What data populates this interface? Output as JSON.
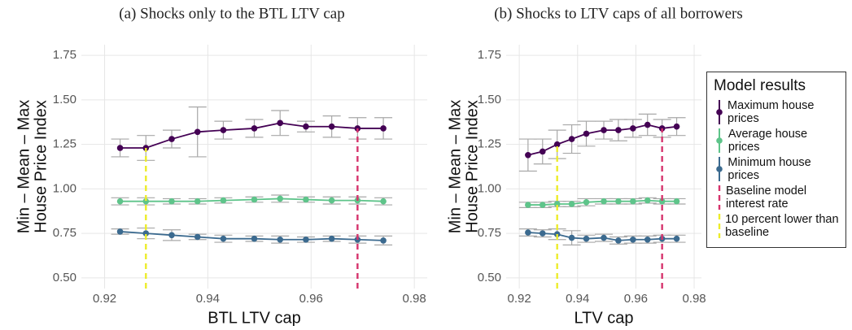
{
  "chart_data": [
    {
      "type": "line",
      "title": "(a) Shocks only to the BTL LTV cap",
      "xlabel": "BTL LTV cap",
      "ylabel": [
        "Min – Mean – Max",
        "House Price Index"
      ],
      "x": [
        0.923,
        0.928,
        0.933,
        0.938,
        0.943,
        0.949,
        0.954,
        0.959,
        0.964,
        0.969,
        0.974
      ],
      "series": [
        {
          "name": "Maximum house prices",
          "color": "#440154",
          "values": [
            1.23,
            1.23,
            1.28,
            1.32,
            1.33,
            1.34,
            1.37,
            1.35,
            1.35,
            1.34,
            1.34
          ],
          "errors": [
            0.05,
            0.07,
            0.05,
            0.14,
            0.05,
            0.05,
            0.07,
            0.03,
            0.06,
            0.06,
            0.06
          ]
        },
        {
          "name": "Average house prices",
          "color": "#5ec48a",
          "values": [
            0.93,
            0.93,
            0.93,
            0.93,
            0.935,
            0.94,
            0.945,
            0.94,
            0.935,
            0.935,
            0.93
          ],
          "errors": [
            0.02,
            0.02,
            0.015,
            0.015,
            0.015,
            0.015,
            0.02,
            0.015,
            0.02,
            0.02,
            0.02
          ]
        },
        {
          "name": "Minimum house prices",
          "color": "#3b6a8f",
          "values": [
            0.76,
            0.75,
            0.74,
            0.73,
            0.72,
            0.72,
            0.715,
            0.715,
            0.72,
            0.715,
            0.71
          ],
          "errors": [
            0.015,
            0.03,
            0.03,
            0.015,
            0.02,
            0.015,
            0.02,
            0.015,
            0.015,
            0.02,
            0.025
          ]
        }
      ],
      "vlines": [
        {
          "name": "Baseline model interest rate",
          "color": "#d6336c",
          "x": 0.969
        },
        {
          "name": "10 percent lower than baseline",
          "color": "#ecec2a",
          "x": 0.928
        }
      ],
      "legend_title": "Model results",
      "xlim": [
        0.9155,
        0.9825
      ],
      "xticks": [
        0.92,
        0.94,
        0.96,
        0.98
      ],
      "ylim": [
        0.44,
        1.81
      ],
      "yticks": [
        {
          "value": 0.5,
          "label": "0.50"
        },
        {
          "value": 0.75,
          "label": "0.75"
        },
        {
          "value": 1.0,
          "label": "1.00"
        },
        {
          "value": 1.25,
          "label": "1.25"
        },
        {
          "value": 1.5,
          "label": "1.50"
        },
        {
          "value": 1.75,
          "label": "1.75"
        }
      ],
      "grid": true
    },
    {
      "type": "line",
      "title": "(b) Shocks to LTV caps of all borrowers",
      "xlabel": "LTV cap",
      "ylabel": [
        "Min – Mean – Max",
        "House Price Index"
      ],
      "x": [
        0.923,
        0.928,
        0.933,
        0.938,
        0.943,
        0.949,
        0.954,
        0.959,
        0.964,
        0.969,
        0.974
      ],
      "series": [
        {
          "color": "#440154",
          "values": [
            1.19,
            1.21,
            1.25,
            1.28,
            1.31,
            1.33,
            1.33,
            1.34,
            1.36,
            1.34,
            1.35
          ],
          "errors": [
            0.09,
            0.07,
            0.08,
            0.08,
            0.07,
            0.05,
            0.06,
            0.05,
            0.06,
            0.05,
            0.05
          ]
        },
        {
          "color": "#5ec48a",
          "values": [
            0.91,
            0.91,
            0.915,
            0.915,
            0.925,
            0.93,
            0.93,
            0.93,
            0.935,
            0.93,
            0.93
          ],
          "errors": [
            0.015,
            0.015,
            0.015,
            0.015,
            0.02,
            0.015,
            0.015,
            0.015,
            0.015,
            0.015,
            0.015
          ]
        },
        {
          "color": "#3b6a8f",
          "values": [
            0.755,
            0.75,
            0.745,
            0.725,
            0.72,
            0.725,
            0.71,
            0.715,
            0.715,
            0.72,
            0.72
          ],
          "errors": [
            0.02,
            0.02,
            0.03,
            0.04,
            0.02,
            0.02,
            0.02,
            0.02,
            0.02,
            0.02,
            0.02
          ]
        }
      ],
      "vlines": [
        {
          "color": "#d6336c",
          "x": 0.969
        },
        {
          "color": "#ecec2a",
          "x": 0.933
        }
      ],
      "xlim": [
        0.9155,
        0.9825
      ],
      "xticks": [
        0.92,
        0.94,
        0.96,
        0.98
      ],
      "ylim": [
        0.44,
        1.81
      ],
      "yticks": [
        {
          "value": 0.5,
          "label": "0.50"
        },
        {
          "value": 0.75,
          "label": "0.75"
        },
        {
          "value": 1.0,
          "label": "1.00"
        },
        {
          "value": 1.25,
          "label": "1.25"
        },
        {
          "value": 1.5,
          "label": "1.50"
        },
        {
          "value": 1.75,
          "label": "1.75"
        }
      ],
      "grid": true
    }
  ]
}
